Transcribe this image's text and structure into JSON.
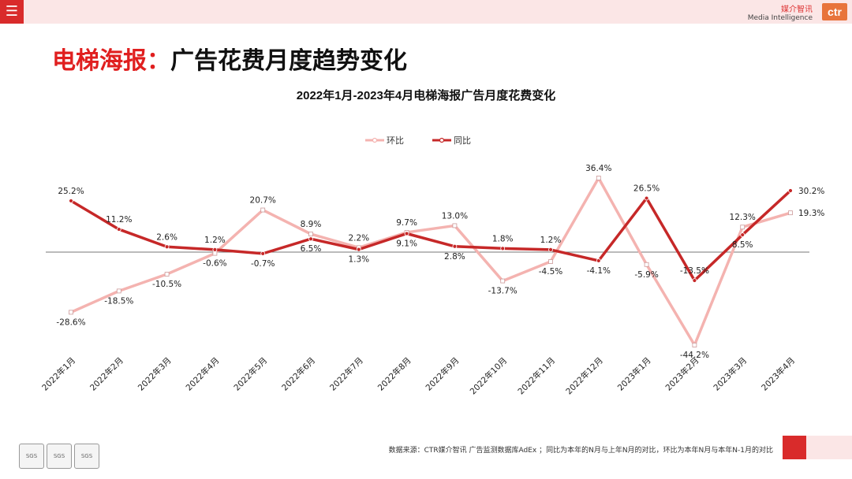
{
  "header": {
    "menu_icon": "hamburger-menu-icon",
    "brand_cn": "媒介智讯",
    "brand_en": "Media Intelligence",
    "logo_text": "ctr"
  },
  "title": {
    "red": "电梯海报：",
    "black": "广告花费月度趋势变化"
  },
  "footer": {
    "source": "数据来源：CTR媒介智讯 广告监测数据库AdEx ；同比为本年的N月与上年N月的对比，环比为本年N月与本年N-1月的对比",
    "sgs_badges": [
      "SGS",
      "SGS",
      "SGS"
    ]
  },
  "colors": {
    "accent": "#d92b2b",
    "huanbi": "#f4b3b0",
    "tongbi": "#c62828",
    "zero_line": "#777777"
  },
  "chart_data": {
    "type": "line",
    "title": "2022年1月-2023年4月电梯海报广告月度花费变化",
    "legend_position": "top-center",
    "categories": [
      "2022年1月",
      "2022年2月",
      "2022年3月",
      "2022年4月",
      "2022年5月",
      "2022年6月",
      "2022年7月",
      "2022年8月",
      "2022年9月",
      "2022年10月",
      "2022年11月",
      "2022年12月",
      "2023年1月",
      "2023年2月",
      "2023年3月",
      "2023年4月"
    ],
    "series": [
      {
        "name": "环比",
        "values": [
          -28.6,
          -18.5,
          -10.5,
          -0.6,
          20.7,
          8.9,
          2.2,
          9.7,
          13.0,
          -13.7,
          -4.5,
          36.4,
          -5.9,
          -44.2,
          12.3,
          19.3
        ],
        "labels": [
          "-28.6%",
          "-18.5%",
          "-10.5%",
          "-0.6%",
          "20.7%",
          "8.9%",
          "2.2%",
          "9.7%",
          "13.0%",
          "-13.7%",
          "-4.5%",
          "36.4%",
          "-5.9%",
          "-44.2%",
          "12.3%",
          "19.3%"
        ]
      },
      {
        "name": "同比",
        "values": [
          25.2,
          11.2,
          2.6,
          1.2,
          -0.7,
          6.5,
          1.3,
          9.1,
          2.8,
          1.8,
          1.2,
          -4.1,
          26.5,
          -13.5,
          8.5,
          30.2
        ],
        "labels": [
          "25.2%",
          "11.2%",
          "2.6%",
          "1.2%",
          "-0.7%",
          "6.5%",
          "1.3%",
          "9.1%",
          "2.8%",
          "1.8%",
          "1.2%",
          "-4.1%",
          "26.5%",
          "-13.5%",
          "8.5%",
          "30.2%"
        ]
      }
    ],
    "ylim": [
      -44.2,
      36.4
    ],
    "grid": false
  }
}
